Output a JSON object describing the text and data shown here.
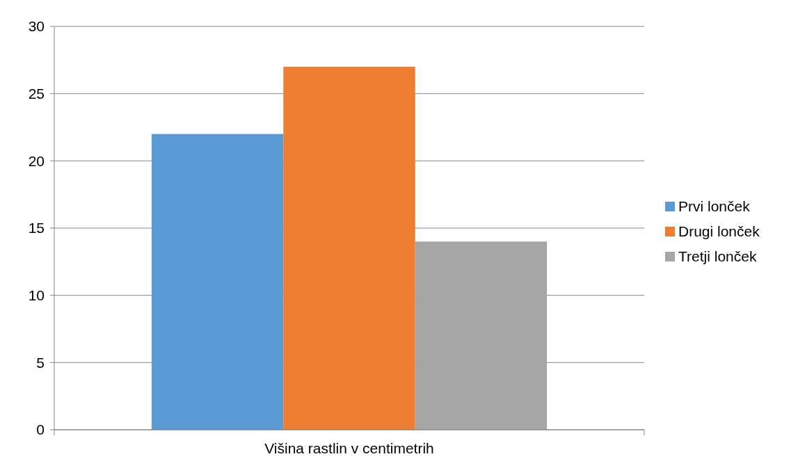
{
  "chart_data": {
    "type": "bar",
    "categories": [
      "Višina rastlin v centimetrih"
    ],
    "series": [
      {
        "name": "Prvi lonček",
        "color": "#5b9bd5",
        "values": [
          22
        ]
      },
      {
        "name": "Drugi lonček",
        "color": "#ed7d31",
        "values": [
          27
        ]
      },
      {
        "name": "Tretji lonček",
        "color": "#a5a5a5",
        "values": [
          14
        ]
      }
    ],
    "ylim": [
      0,
      30
    ],
    "yticks": [
      0,
      5,
      10,
      15,
      20,
      25,
      30
    ],
    "grid": "y",
    "legend": "right"
  }
}
